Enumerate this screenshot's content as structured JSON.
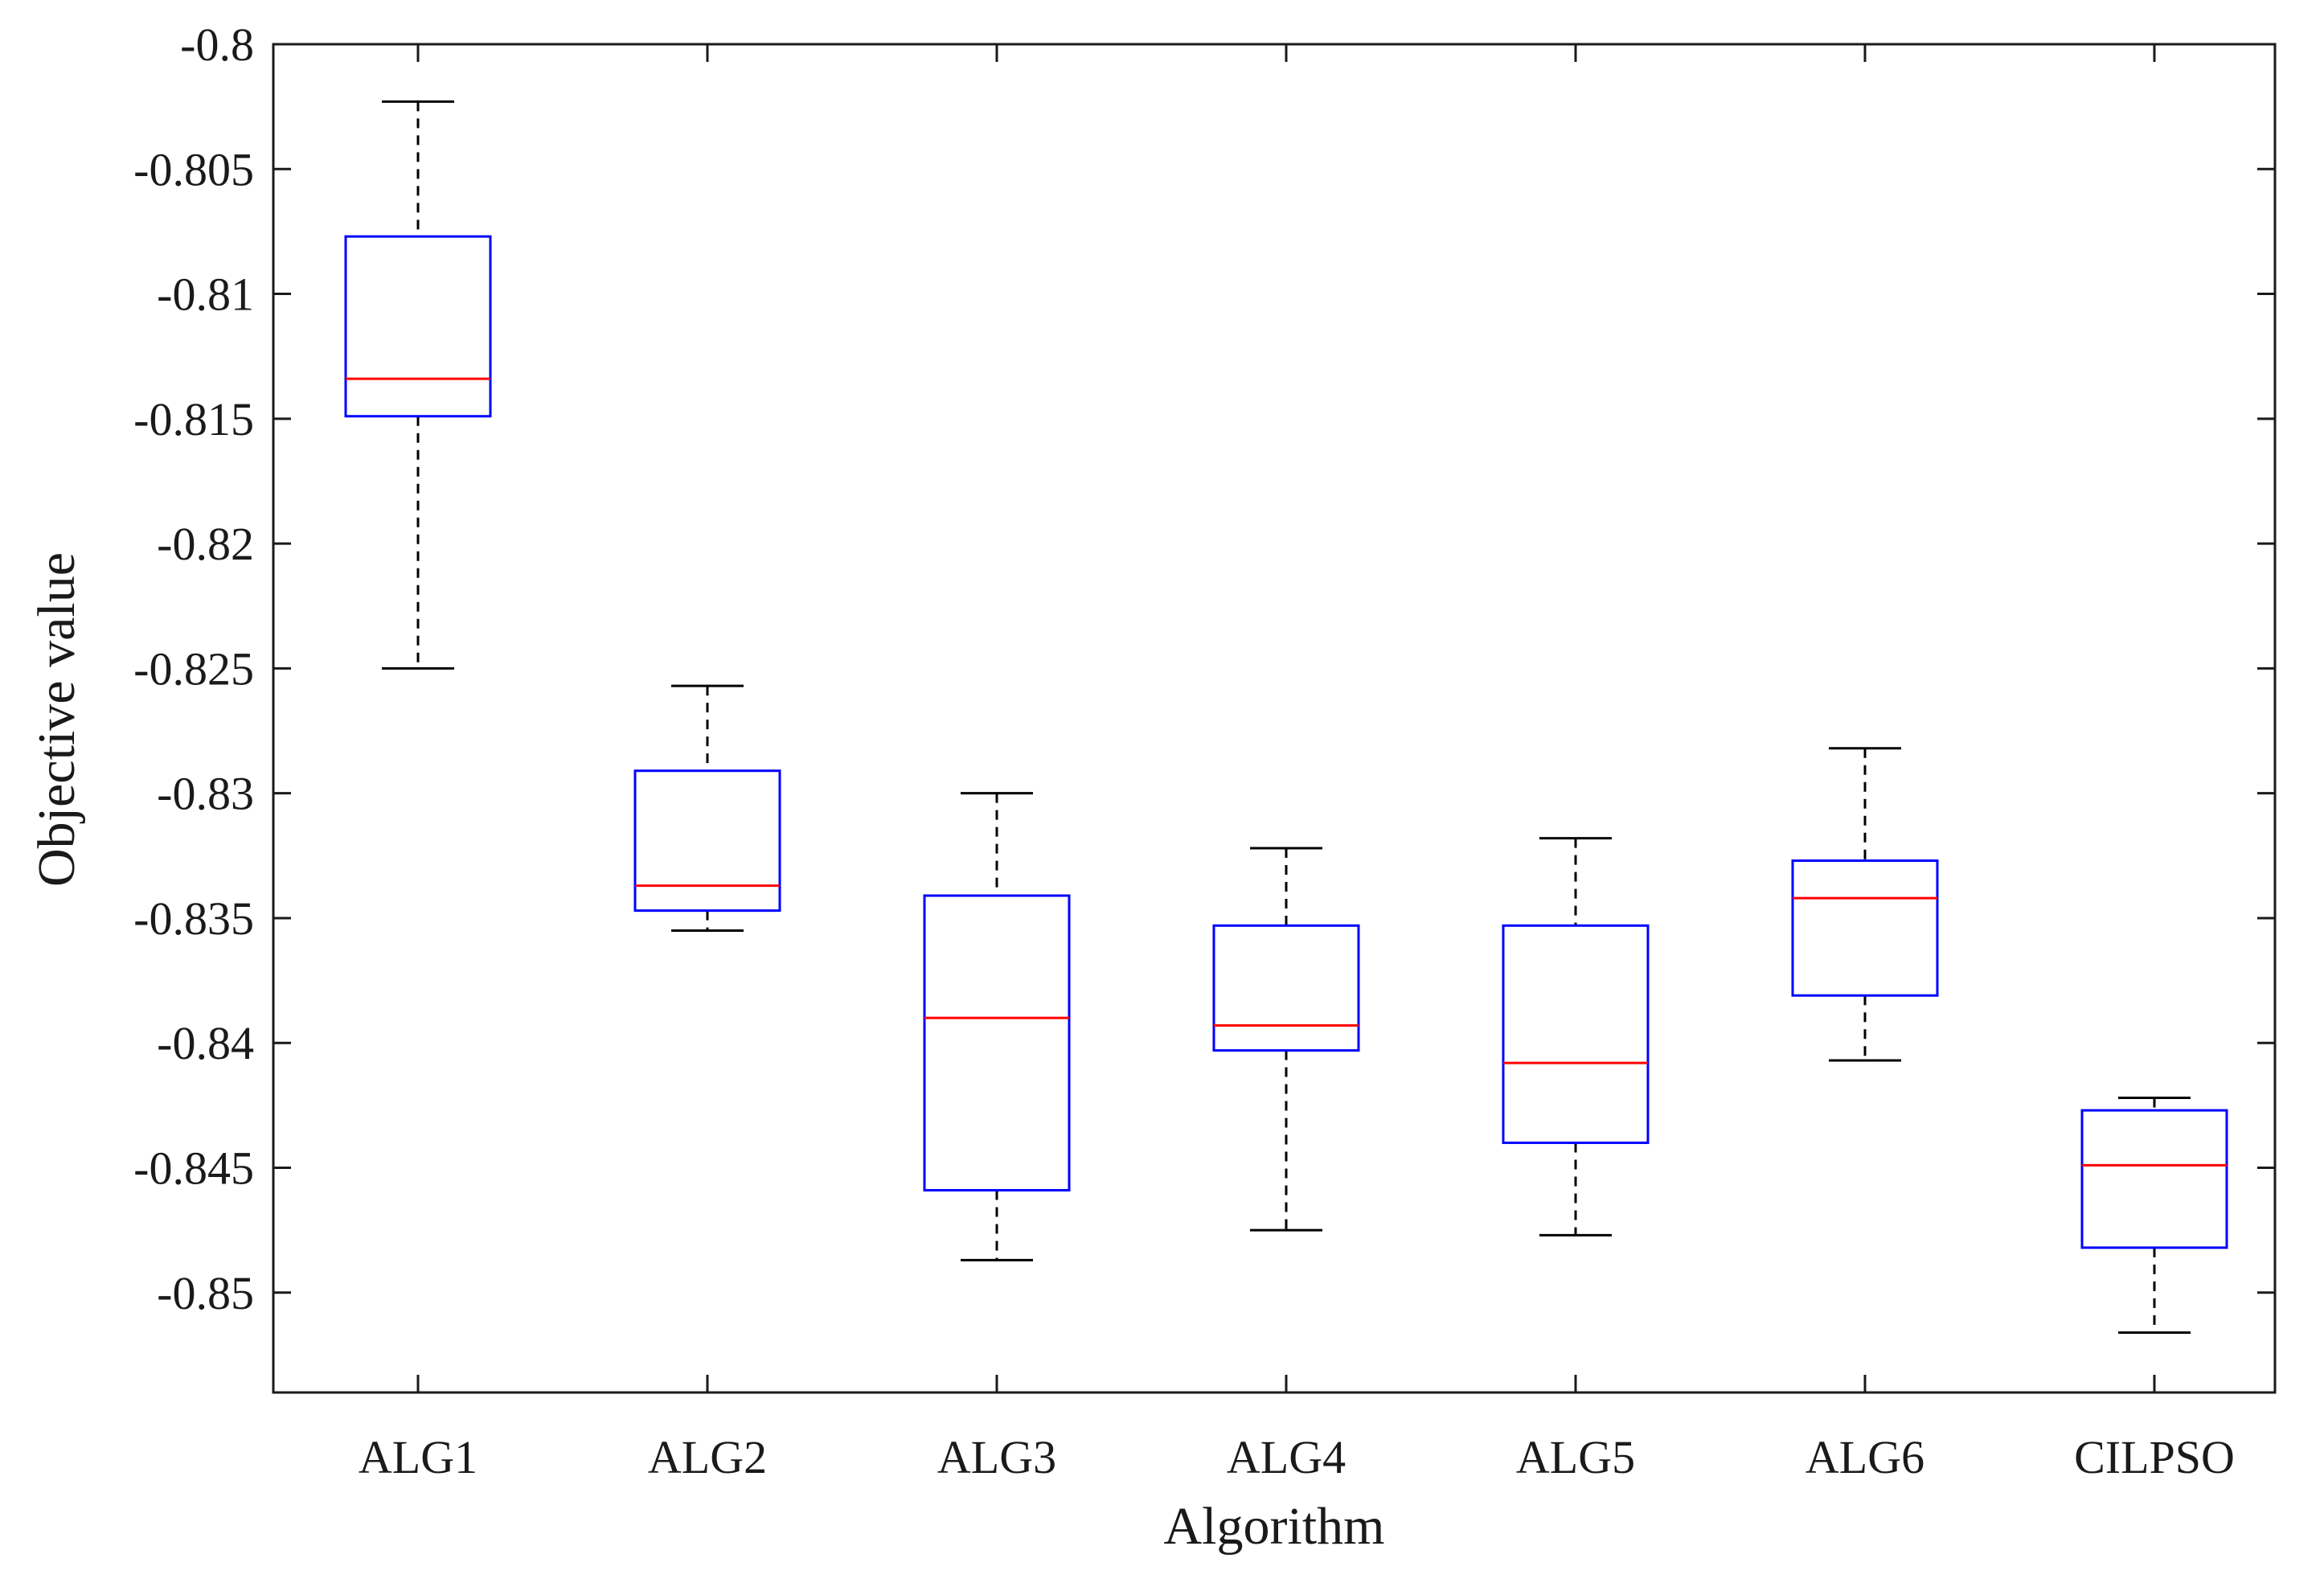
{
  "chart_data": {
    "type": "box",
    "title": "",
    "xlabel": "Algorithm",
    "ylabel": "Objective value",
    "ylim": [
      -0.854,
      -0.8
    ],
    "yticks": [
      -0.8,
      -0.805,
      -0.81,
      -0.815,
      -0.82,
      -0.825,
      -0.83,
      -0.835,
      -0.84,
      -0.845,
      -0.85
    ],
    "ytick_labels": [
      "-0.8",
      "-0.805",
      "-0.81",
      "-0.815",
      "-0.82",
      "-0.825",
      "-0.83",
      "-0.835",
      "-0.84",
      "-0.845",
      "-0.85"
    ],
    "grid": false,
    "legend": "none",
    "categories": [
      "ALG1",
      "ALG2",
      "ALG3",
      "ALG4",
      "ALG5",
      "ALG6",
      "CILPSO"
    ],
    "boxes": [
      {
        "category": "ALG1",
        "whisker_high": -0.8023,
        "q3": -0.8077,
        "median": -0.8134,
        "q1": -0.8149,
        "whisker_low": -0.825
      },
      {
        "category": "ALG2",
        "whisker_high": -0.8257,
        "q3": -0.8291,
        "median": -0.8337,
        "q1": -0.8347,
        "whisker_low": -0.8355
      },
      {
        "category": "ALG3",
        "whisker_high": -0.83,
        "q3": -0.8341,
        "median": -0.839,
        "q1": -0.8459,
        "whisker_low": -0.8487
      },
      {
        "category": "ALG4",
        "whisker_high": -0.8322,
        "q3": -0.8353,
        "median": -0.8393,
        "q1": -0.8403,
        "whisker_low": -0.8475
      },
      {
        "category": "ALG5",
        "whisker_high": -0.8318,
        "q3": -0.8353,
        "median": -0.8408,
        "q1": -0.844,
        "whisker_low": -0.8477
      },
      {
        "category": "ALG6",
        "whisker_high": -0.8282,
        "q3": -0.8327,
        "median": -0.8342,
        "q1": -0.8381,
        "whisker_low": -0.8407
      },
      {
        "category": "CILPSO",
        "whisker_high": -0.8422,
        "q3": -0.8427,
        "median": -0.8449,
        "q1": -0.8482,
        "whisker_low": -0.8516
      }
    ],
    "colors": {
      "box": "#0000ff",
      "median": "#ff0000",
      "whisker": "#000000",
      "axes": "#1a1a1a"
    }
  }
}
